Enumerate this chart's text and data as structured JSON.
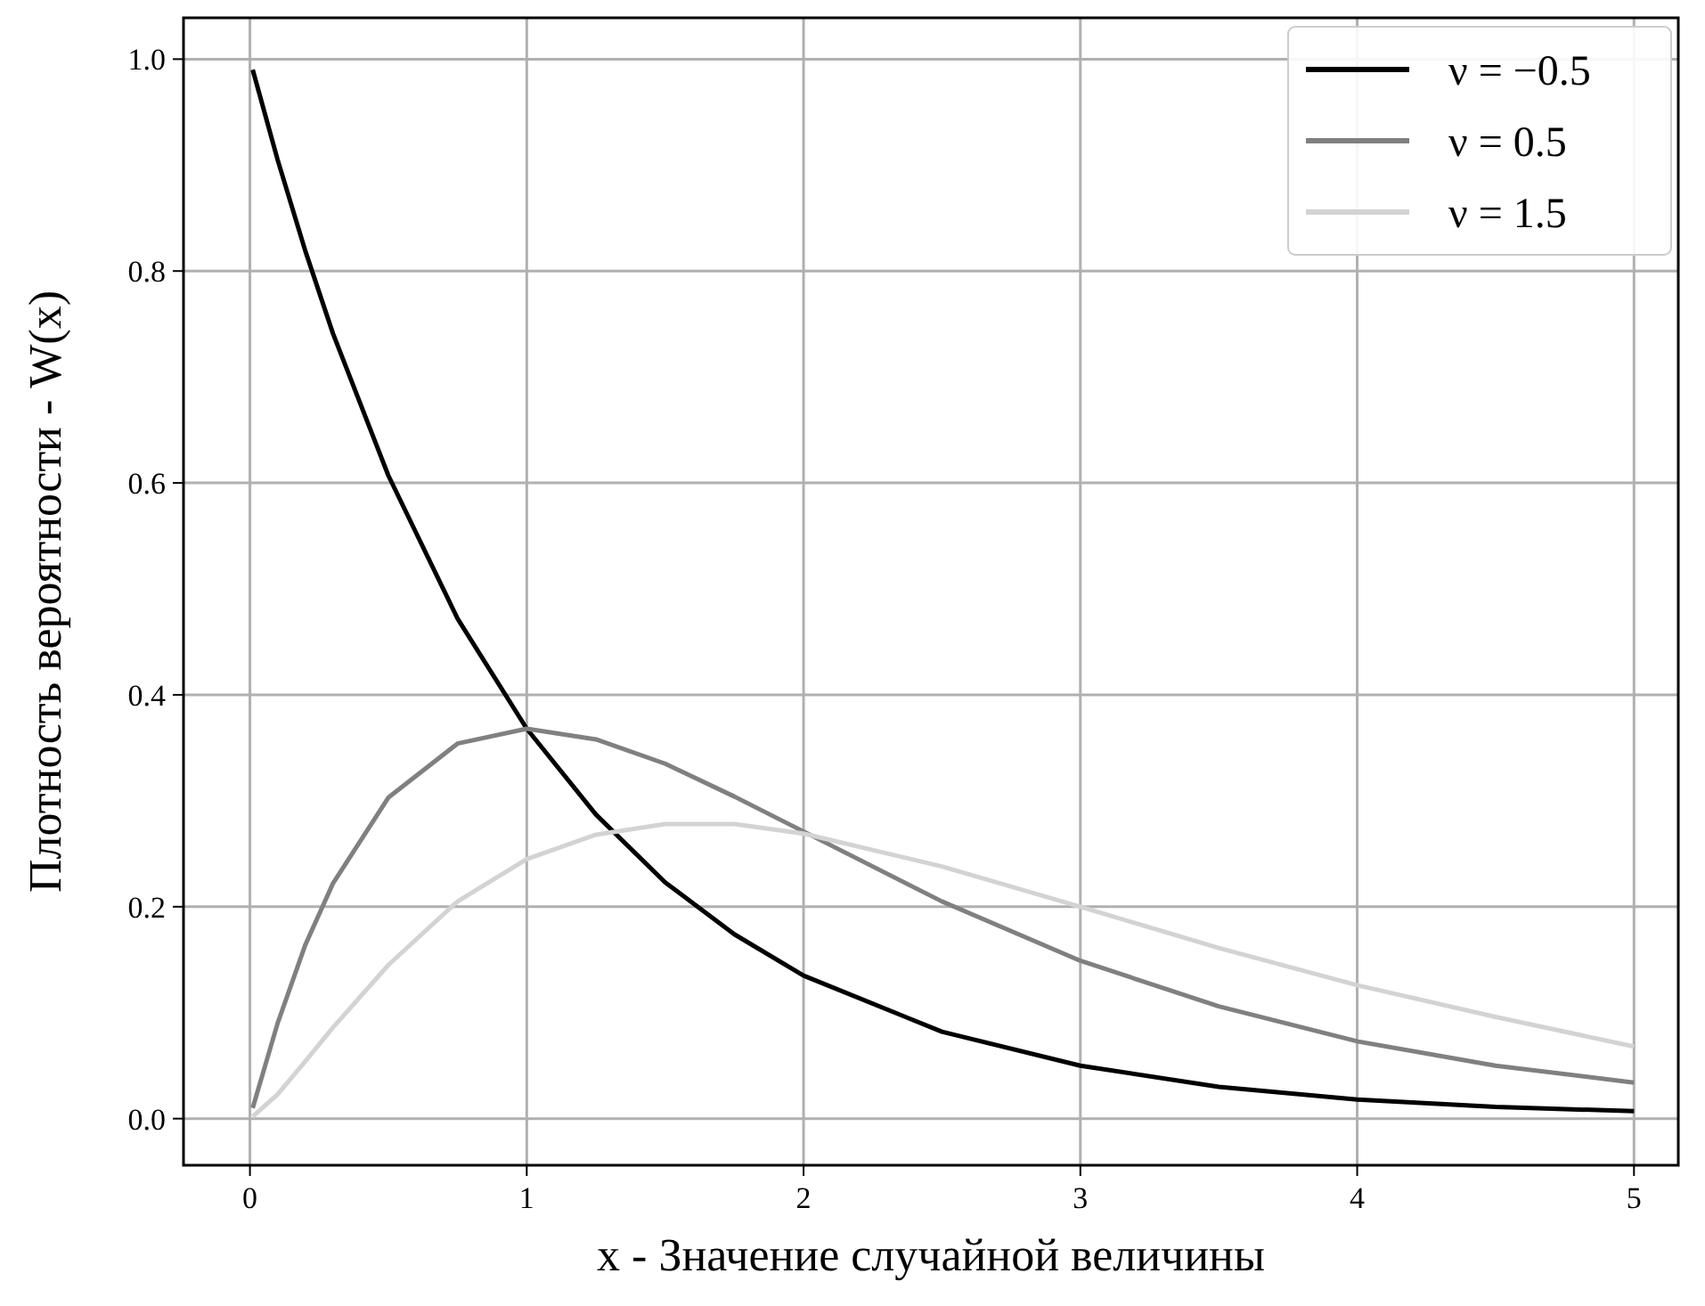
{
  "chart_data": {
    "type": "line",
    "xlabel": "x - Значение случайной величины",
    "ylabel": "Плотность вероятности - W(x)",
    "x": [
      0.01,
      0.1,
      0.2,
      0.3,
      0.5,
      0.75,
      1,
      1.25,
      1.5,
      1.75,
      2,
      2.5,
      3,
      3.5,
      4,
      4.5,
      5
    ],
    "series": [
      {
        "name": "ν = −0.5",
        "color": "#000000",
        "values": [
          0.99,
          0.905,
          0.819,
          0.741,
          0.607,
          0.472,
          0.368,
          0.287,
          0.223,
          0.174,
          0.135,
          0.082,
          0.05,
          0.03,
          0.018,
          0.011,
          0.007
        ]
      },
      {
        "name": "ν = 0.5",
        "color": "#808080",
        "values": [
          0.01,
          0.09,
          0.164,
          0.222,
          0.303,
          0.354,
          0.368,
          0.358,
          0.335,
          0.304,
          0.271,
          0.205,
          0.149,
          0.106,
          0.073,
          0.05,
          0.034
        ]
      },
      {
        "name": "ν = 1.5",
        "color": "#d3d3d3",
        "values": [
          0.002,
          0.023,
          0.054,
          0.086,
          0.145,
          0.205,
          0.245,
          0.268,
          0.278,
          0.278,
          0.269,
          0.238,
          0.2,
          0.161,
          0.126,
          0.096,
          0.068
        ]
      }
    ],
    "xlim": [
      -0.24,
      5.16
    ],
    "ylim": [
      -0.044,
      1.039
    ],
    "xticks": [
      0,
      1,
      2,
      3,
      4,
      5
    ],
    "yticks": [
      {
        "value": 0,
        "label": "0.0"
      },
      {
        "value": 0.2,
        "label": "0.2"
      },
      {
        "value": 0.4,
        "label": "0.4"
      },
      {
        "value": 0.6,
        "label": "0.6"
      },
      {
        "value": 0.8,
        "label": "0.8"
      },
      {
        "value": 1,
        "label": "1.0"
      }
    ],
    "grid": true,
    "legend": "top right",
    "line_style": "solid",
    "marker": "none"
  }
}
